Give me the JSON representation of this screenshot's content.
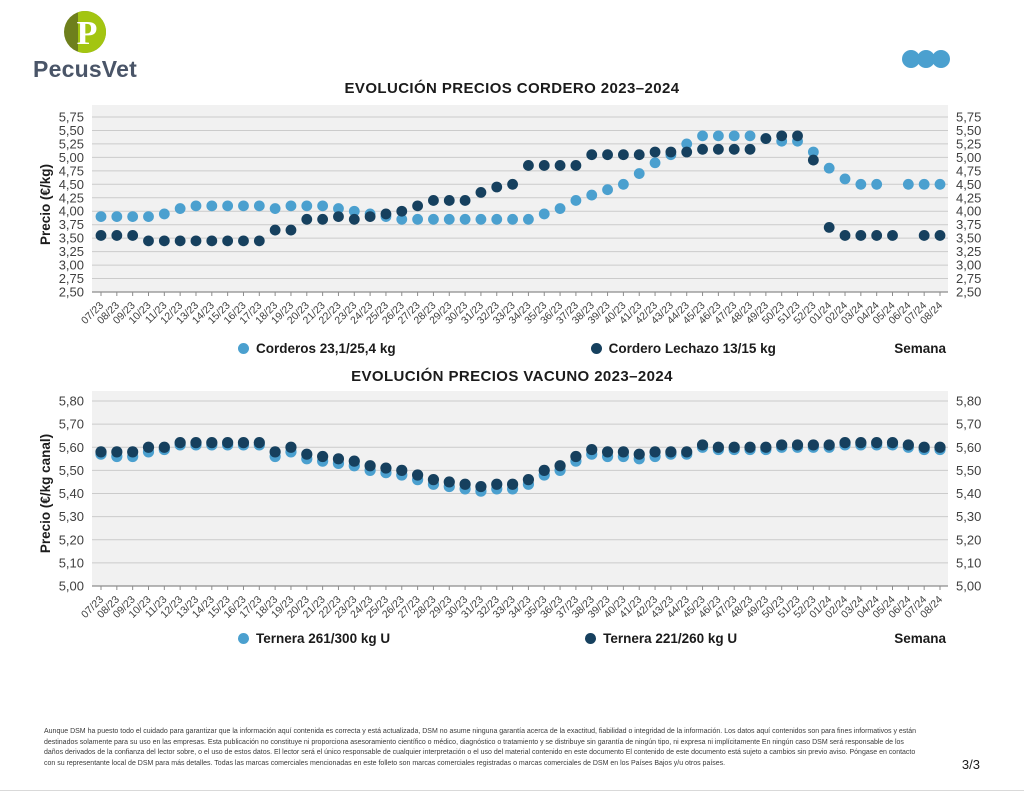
{
  "brand": {
    "name": "PecusVet"
  },
  "header": {
    "menu_icon": "three-dots-icon",
    "dots_color": "#4BA0CF"
  },
  "colors": {
    "light_blue": "#4BA0CF",
    "dark_navy": "#16405E",
    "plot_bg": "#f1f1f1",
    "gridline": "#cbcbcb",
    "logo_green_bright": "#a3c511",
    "logo_green_dark": "#6e7f1c"
  },
  "chart_data": [
    {
      "type": "scatter",
      "title": "EVOLUCIÓN PRECIOS CORDERO 2023–2024",
      "ylabel": "Precio (€/kg)",
      "xlabel": "Semana",
      "ylim": [
        2.5,
        5.75
      ],
      "ystep": 0.25,
      "grid": true,
      "legend_position": "bottom",
      "categories": [
        "07/23",
        "08/23",
        "09/23",
        "10/23",
        "11/23",
        "12/23",
        "13/23",
        "14/23",
        "15/23",
        "16/23",
        "17/23",
        "18/23",
        "19/23",
        "20/23",
        "21/23",
        "22/23",
        "23/23",
        "24/23",
        "25/23",
        "26/23",
        "27/23",
        "28/23",
        "29/23",
        "30/23",
        "31/23",
        "32/23",
        "33/23",
        "34/23",
        "35/23",
        "36/23",
        "37/23",
        "38/23",
        "39/23",
        "40/23",
        "41/23",
        "42/23",
        "43/23",
        "44/23",
        "45/23",
        "46/23",
        "47/23",
        "48/23",
        "49/23",
        "50/23",
        "51/23",
        "52/23",
        "01/24",
        "02/24",
        "03/24",
        "04/24",
        "05/24",
        "06/24",
        "07/24",
        "08/24"
      ],
      "series": [
        {
          "name": "Corderos 23,1/25,4 kg",
          "color": "#4BA0CF",
          "values": [
            3.9,
            3.9,
            3.9,
            3.9,
            3.95,
            4.05,
            4.1,
            4.1,
            4.1,
            4.1,
            4.1,
            4.05,
            4.1,
            4.1,
            4.1,
            4.05,
            4.0,
            3.95,
            3.9,
            3.85,
            3.85,
            3.85,
            3.85,
            3.85,
            3.85,
            3.85,
            3.85,
            3.85,
            3.95,
            4.05,
            4.2,
            4.3,
            4.4,
            4.5,
            4.7,
            4.9,
            5.05,
            5.25,
            5.4,
            5.4,
            5.4,
            5.4,
            5.35,
            5.3,
            5.3,
            5.1,
            4.8,
            4.6,
            4.5,
            4.5,
            null,
            4.5,
            4.5,
            4.5
          ]
        },
        {
          "name": "Cordero Lechazo 13/15 kg",
          "color": "#16405E",
          "values": [
            3.55,
            3.55,
            3.55,
            3.45,
            3.45,
            3.45,
            3.45,
            3.45,
            3.45,
            3.45,
            3.45,
            3.65,
            3.65,
            3.85,
            3.85,
            3.9,
            3.85,
            3.9,
            3.95,
            4.0,
            4.1,
            4.2,
            4.2,
            4.2,
            4.35,
            4.45,
            4.5,
            4.85,
            4.85,
            4.85,
            4.85,
            5.05,
            5.05,
            5.05,
            5.05,
            5.1,
            5.1,
            5.1,
            5.15,
            5.15,
            5.15,
            5.15,
            5.35,
            5.4,
            5.4,
            4.95,
            3.7,
            3.55,
            3.55,
            3.55,
            3.55,
            null,
            3.55,
            3.55
          ]
        }
      ]
    },
    {
      "type": "scatter",
      "title": "EVOLUCIÓN PRECIOS VACUNO 2023–2024",
      "ylabel": "Precio (€/kg canal)",
      "xlabel": "Semana",
      "ylim": [
        5.0,
        5.8
      ],
      "ystep": 0.1,
      "grid": true,
      "legend_position": "bottom",
      "categories": [
        "07/23",
        "08/23",
        "09/23",
        "10/23",
        "11/23",
        "12/23",
        "13/23",
        "14/23",
        "15/23",
        "16/23",
        "17/23",
        "18/23",
        "19/23",
        "20/23",
        "21/23",
        "22/23",
        "23/23",
        "24/23",
        "25/23",
        "26/23",
        "27/23",
        "28/23",
        "29/23",
        "30/23",
        "31/23",
        "32/23",
        "33/23",
        "34/23",
        "35/23",
        "36/23",
        "37/23",
        "38/23",
        "39/23",
        "40/23",
        "41/23",
        "42/23",
        "43/23",
        "44/23",
        "45/23",
        "46/23",
        "47/23",
        "48/23",
        "49/23",
        "50/23",
        "51/23",
        "52/23",
        "01/24",
        "02/24",
        "03/24",
        "04/24",
        "05/24",
        "06/24",
        "07/24",
        "08/24"
      ],
      "series": [
        {
          "name": "Ternera 261/300 kg U",
          "color": "#4BA0CF",
          "values": [
            5.57,
            5.56,
            5.56,
            5.58,
            5.59,
            5.61,
            5.61,
            5.61,
            5.61,
            5.61,
            5.61,
            5.56,
            5.58,
            5.55,
            5.54,
            5.53,
            5.52,
            5.5,
            5.49,
            5.48,
            5.46,
            5.44,
            5.43,
            5.42,
            5.41,
            5.42,
            5.42,
            5.44,
            5.48,
            5.5,
            5.54,
            5.57,
            5.56,
            5.56,
            5.55,
            5.56,
            5.57,
            5.57,
            5.6,
            5.59,
            5.59,
            5.59,
            5.59,
            5.6,
            5.6,
            5.6,
            5.6,
            5.61,
            5.61,
            5.61,
            5.61,
            5.6,
            5.59,
            5.59
          ]
        },
        {
          "name": "Ternera 221/260 kg U",
          "color": "#16405E",
          "values": [
            5.58,
            5.58,
            5.58,
            5.6,
            5.6,
            5.62,
            5.62,
            5.62,
            5.62,
            5.62,
            5.62,
            5.58,
            5.6,
            5.57,
            5.56,
            5.55,
            5.54,
            5.52,
            5.51,
            5.5,
            5.48,
            5.46,
            5.45,
            5.44,
            5.43,
            5.44,
            5.44,
            5.46,
            5.5,
            5.52,
            5.56,
            5.59,
            5.58,
            5.58,
            5.57,
            5.58,
            5.58,
            5.58,
            5.61,
            5.6,
            5.6,
            5.6,
            5.6,
            5.61,
            5.61,
            5.61,
            5.61,
            5.62,
            5.62,
            5.62,
            5.62,
            5.61,
            5.6,
            5.6
          ]
        }
      ]
    }
  ],
  "footer": {
    "disclaimer": "Aunque DSM ha puesto todo el cuidado para garantizar que la información aquí contenida es correcta y está actualizada, DSM no asume ninguna garantía acerca de la exactitud, fiabilidad o integridad de la información. Los datos aquí contenidos son para fines informativos y están destinados solamente para su uso en las empresas. Esta publicación no constituye ni proporciona asesoramiento científico o médico, diagnóstico o tratamiento y se distribuye sin garantía de ningún tipo, ni expresa ni implícitamente En ningún caso DSM será responsable de los daños derivados de la confianza del lector sobre, o el uso de estos datos. El lector será el único responsable de cualquier interpretación o el uso del material contenido en este documento El contenido de este documento está sujeto a cambios sin previo aviso. Póngase en contacto con su representante local de DSM para más detalles. Todas las marcas comerciales mencionadas en este folleto son marcas comerciales registradas o marcas comerciales de DSM en los Países Bajos y/u otros países.",
    "page": "3/3"
  }
}
